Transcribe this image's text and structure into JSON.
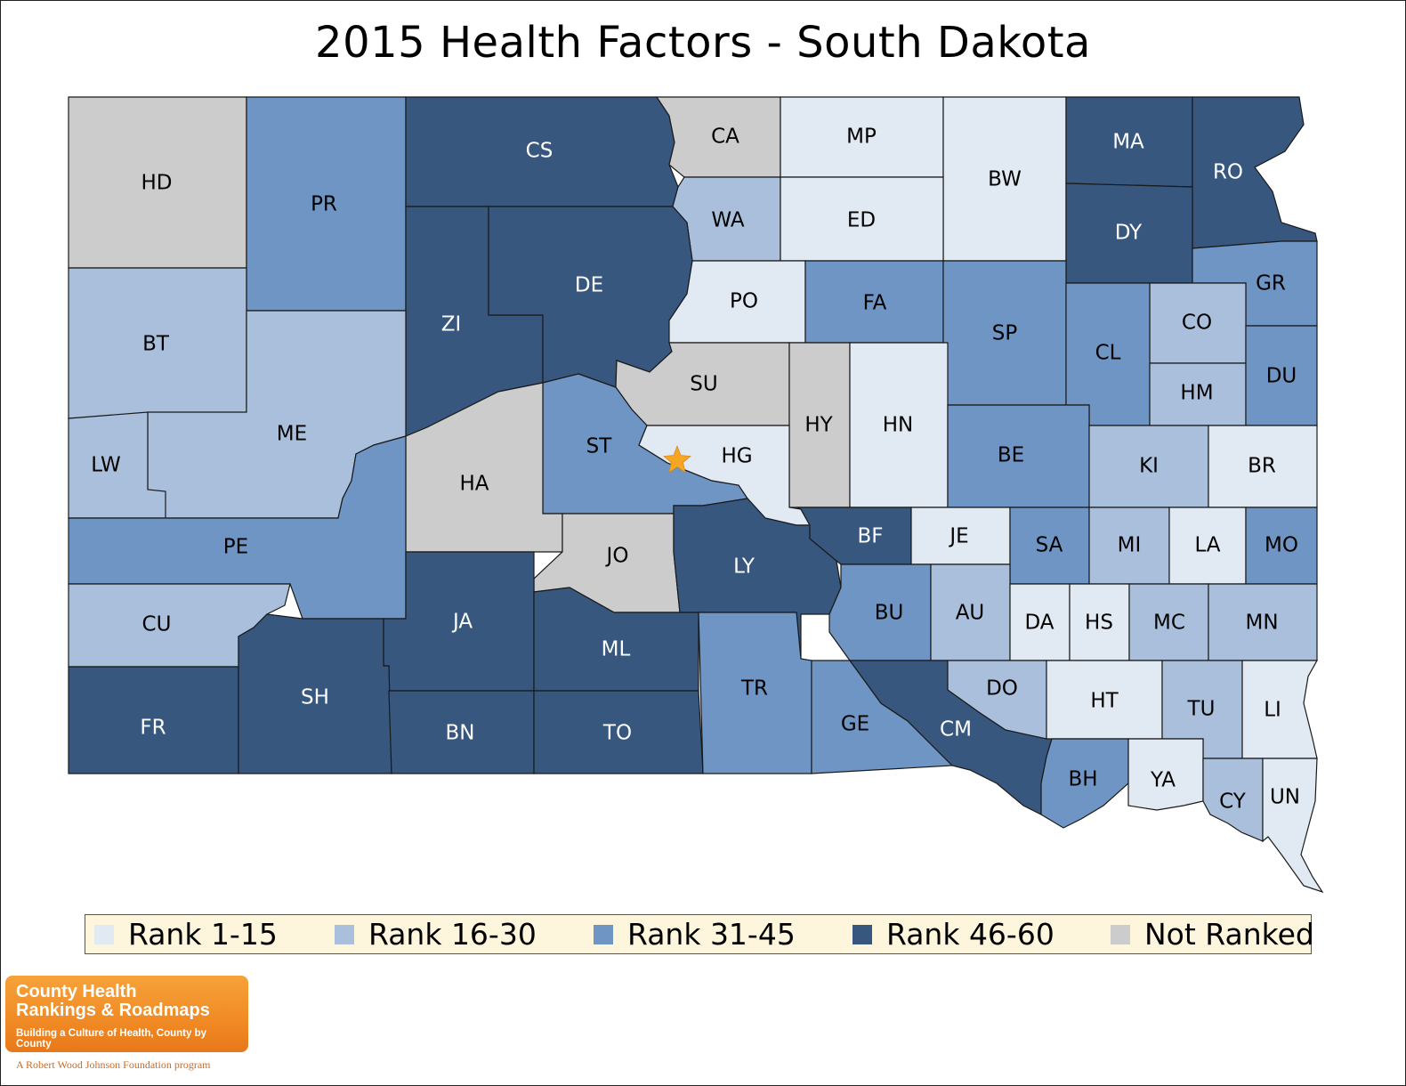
{
  "title": "2015 Health Factors - South Dakota",
  "colors": {
    "rank_1_15": "#e1e9f3",
    "rank_16_30": "#a9bfdb",
    "rank_31_45": "#6e95c3",
    "rank_46_60": "#37577f",
    "not_ranked": "#cccccc",
    "marker": "#f6a623"
  },
  "legend": [
    {
      "key": "rank_1_15",
      "label": "Rank 1-15"
    },
    {
      "key": "rank_16_30",
      "label": "Rank 16-30"
    },
    {
      "key": "rank_31_45",
      "label": "Rank 31-45"
    },
    {
      "key": "rank_46_60",
      "label": "Rank 46-60"
    },
    {
      "key": "not_ranked",
      "label": "Not Ranked"
    }
  ],
  "counties": [
    {
      "abbr": "HD",
      "rank_group": "not_ranked"
    },
    {
      "abbr": "PR",
      "rank_group": "rank_31_45"
    },
    {
      "abbr": "CS",
      "rank_group": "rank_46_60"
    },
    {
      "abbr": "CA",
      "rank_group": "not_ranked"
    },
    {
      "abbr": "MP",
      "rank_group": "rank_1_15"
    },
    {
      "abbr": "BW",
      "rank_group": "rank_1_15"
    },
    {
      "abbr": "MA",
      "rank_group": "rank_46_60"
    },
    {
      "abbr": "RO",
      "rank_group": "rank_46_60"
    },
    {
      "abbr": "WA",
      "rank_group": "rank_16_30"
    },
    {
      "abbr": "ED",
      "rank_group": "rank_1_15"
    },
    {
      "abbr": "DY",
      "rank_group": "rank_46_60"
    },
    {
      "abbr": "BT",
      "rank_group": "rank_16_30"
    },
    {
      "abbr": "ZI",
      "rank_group": "rank_46_60"
    },
    {
      "abbr": "DE",
      "rank_group": "rank_46_60"
    },
    {
      "abbr": "PO",
      "rank_group": "rank_1_15"
    },
    {
      "abbr": "FA",
      "rank_group": "rank_31_45"
    },
    {
      "abbr": "SP",
      "rank_group": "rank_31_45"
    },
    {
      "abbr": "GR",
      "rank_group": "rank_31_45"
    },
    {
      "abbr": "CO",
      "rank_group": "rank_16_30"
    },
    {
      "abbr": "CL",
      "rank_group": "rank_31_45"
    },
    {
      "abbr": "HM",
      "rank_group": "rank_16_30"
    },
    {
      "abbr": "DU",
      "rank_group": "rank_31_45"
    },
    {
      "abbr": "ME",
      "rank_group": "rank_16_30"
    },
    {
      "abbr": "LW",
      "rank_group": "rank_16_30"
    },
    {
      "abbr": "SU",
      "rank_group": "not_ranked"
    },
    {
      "abbr": "HY",
      "rank_group": "not_ranked"
    },
    {
      "abbr": "HN",
      "rank_group": "rank_1_15"
    },
    {
      "abbr": "ST",
      "rank_group": "rank_31_45"
    },
    {
      "abbr": "HG",
      "rank_group": "rank_1_15"
    },
    {
      "abbr": "HA",
      "rank_group": "not_ranked"
    },
    {
      "abbr": "BE",
      "rank_group": "rank_31_45"
    },
    {
      "abbr": "KI",
      "rank_group": "rank_16_30"
    },
    {
      "abbr": "BR",
      "rank_group": "rank_1_15"
    },
    {
      "abbr": "PE",
      "rank_group": "rank_31_45"
    },
    {
      "abbr": "JO",
      "rank_group": "not_ranked"
    },
    {
      "abbr": "LY",
      "rank_group": "rank_46_60"
    },
    {
      "abbr": "BF",
      "rank_group": "rank_46_60"
    },
    {
      "abbr": "JE",
      "rank_group": "rank_1_15"
    },
    {
      "abbr": "SA",
      "rank_group": "rank_31_45"
    },
    {
      "abbr": "MI",
      "rank_group": "rank_16_30"
    },
    {
      "abbr": "LA",
      "rank_group": "rank_1_15"
    },
    {
      "abbr": "MO",
      "rank_group": "rank_31_45"
    },
    {
      "abbr": "CU",
      "rank_group": "rank_16_30"
    },
    {
      "abbr": "JA",
      "rank_group": "rank_46_60"
    },
    {
      "abbr": "ML",
      "rank_group": "rank_46_60"
    },
    {
      "abbr": "BU",
      "rank_group": "rank_31_45"
    },
    {
      "abbr": "AU",
      "rank_group": "rank_16_30"
    },
    {
      "abbr": "DA",
      "rank_group": "rank_1_15"
    },
    {
      "abbr": "HS",
      "rank_group": "rank_1_15"
    },
    {
      "abbr": "MC",
      "rank_group": "rank_16_30"
    },
    {
      "abbr": "MN",
      "rank_group": "rank_16_30"
    },
    {
      "abbr": "FR",
      "rank_group": "rank_46_60"
    },
    {
      "abbr": "SH",
      "rank_group": "rank_46_60"
    },
    {
      "abbr": "BN",
      "rank_group": "rank_46_60"
    },
    {
      "abbr": "TO",
      "rank_group": "rank_46_60"
    },
    {
      "abbr": "TR",
      "rank_group": "rank_31_45"
    },
    {
      "abbr": "GE",
      "rank_group": "rank_31_45"
    },
    {
      "abbr": "CM",
      "rank_group": "rank_46_60"
    },
    {
      "abbr": "DO",
      "rank_group": "rank_16_30"
    },
    {
      "abbr": "HT",
      "rank_group": "rank_1_15"
    },
    {
      "abbr": "TU",
      "rank_group": "rank_16_30"
    },
    {
      "abbr": "LI",
      "rank_group": "rank_1_15"
    },
    {
      "abbr": "BH",
      "rank_group": "rank_31_45"
    },
    {
      "abbr": "YA",
      "rank_group": "rank_1_15"
    },
    {
      "abbr": "CY",
      "rank_group": "rank_16_30"
    },
    {
      "abbr": "UN",
      "rank_group": "rank_1_15"
    }
  ],
  "marker": {
    "type": "star",
    "meaning": "state capital"
  },
  "logo": {
    "line1": "County Health",
    "line2": "Rankings & Roadmaps",
    "line3": "Building a Culture of Health, County by County",
    "sub": "A Robert Wood Johnson Foundation program"
  }
}
